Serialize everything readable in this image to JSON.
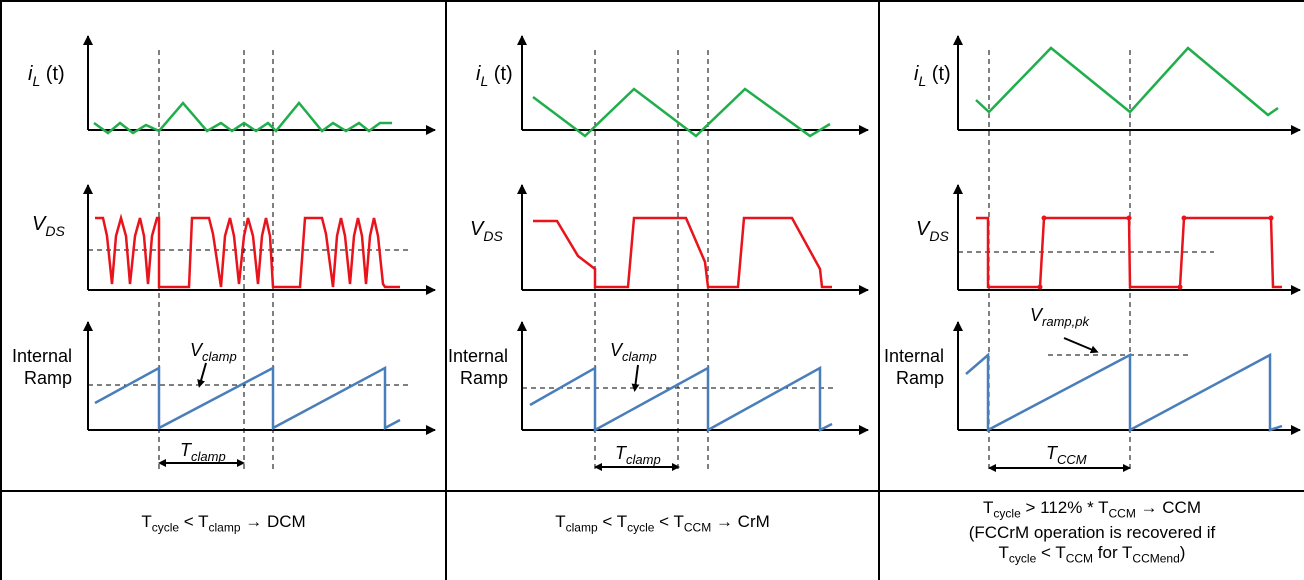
{
  "colors": {
    "current": "#1fae4b",
    "vds": "#e8131b",
    "ramp": "#4a7ebb",
    "axis": "#000000"
  },
  "panels": [
    {
      "il_label": "i",
      "il_sub": "L",
      "il_t": " (t)",
      "vds_label": "V",
      "vds_sub": "DS",
      "ramp_label_1": "Internal",
      "ramp_label_2": "Ramp",
      "vmark_main": "V",
      "vmark_sub": "clamp",
      "period_main": "T",
      "period_sub": "clamp",
      "caption": {
        "a": "T",
        "a_sub": "cycle",
        "b": " < T",
        "b_sub": "clamp",
        "c": " → DCM"
      }
    },
    {
      "il_label": "i",
      "il_sub": "L",
      "il_t": " (t)",
      "vds_label": "V",
      "vds_sub": "DS",
      "ramp_label_1": "Internal",
      "ramp_label_2": "Ramp",
      "vmark_main": "V",
      "vmark_sub": "clamp",
      "period_main": "T",
      "period_sub": "clamp",
      "caption": {
        "a": "T",
        "a_sub": "clamp",
        "b": " < T",
        "b_sub": "cycle",
        "c": " < T",
        "c_sub": "CCM",
        "d": " → CrM"
      }
    },
    {
      "il_label": "i",
      "il_sub": "L",
      "il_t": " (t)",
      "vds_label": "V",
      "vds_sub": "DS",
      "ramp_label_1": "Internal",
      "ramp_label_2": "Ramp",
      "vmark_main": "V",
      "vmark_sub": "ramp,pk",
      "period_main": "T",
      "period_sub": "CCM",
      "caption": {
        "l1_a": "T",
        "l1_a_sub": "cycle",
        "l1_b": " > 112% * T",
        "l1_b_sub": "CCM",
        "l1_c": " → CCM",
        "l2": "(FCCrM operation is recovered if",
        "l3_a": "T",
        "l3_a_sub": "cycle",
        "l3_b": " < T",
        "l3_b_sub": "CCM",
        "l3_c": " for T",
        "l3_c_sub": "CCMend",
        "l3_d": ")"
      }
    }
  ]
}
